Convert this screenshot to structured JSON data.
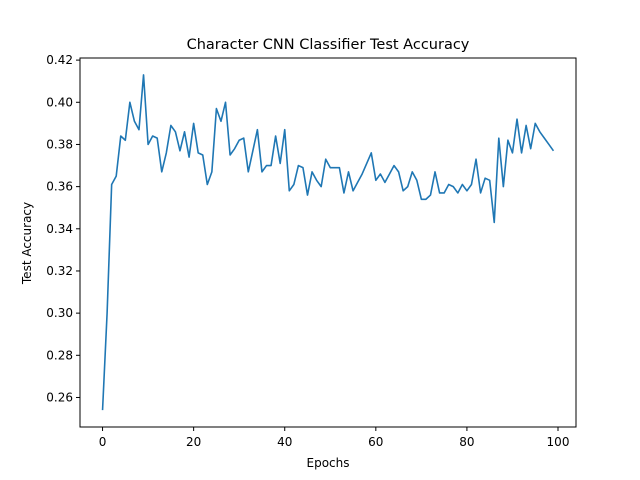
{
  "chart_data": {
    "type": "line",
    "title": "Character CNN Classifier Test Accuracy",
    "xlabel": "Epochs",
    "ylabel": "Test Accuracy",
    "xlim": [
      -4.95,
      103.95
    ],
    "ylim": [
      0.246,
      0.421
    ],
    "xticks": [
      0,
      20,
      40,
      60,
      80,
      100
    ],
    "yticks": [
      0.26,
      0.28,
      0.3,
      0.32,
      0.34,
      0.36,
      0.38,
      0.4,
      0.42
    ],
    "grid": false,
    "line_color": "#1f77b4",
    "series": [
      {
        "x": [
          0,
          1,
          2,
          3,
          4,
          5,
          6,
          7,
          8,
          9,
          10,
          11,
          12,
          13,
          14,
          15,
          16,
          17,
          18,
          19,
          20,
          21,
          22,
          23,
          24,
          25,
          26,
          27,
          28,
          29,
          30,
          31,
          32,
          33,
          34,
          35,
          36,
          37,
          38,
          39,
          40,
          41,
          42,
          43,
          44,
          45,
          46,
          47,
          48,
          49,
          50,
          51,
          52,
          53,
          54,
          55,
          56,
          57,
          58,
          59,
          60,
          61,
          62,
          63,
          64,
          65,
          66,
          67,
          68,
          69,
          70,
          71,
          72,
          73,
          74,
          75,
          76,
          77,
          78,
          79,
          80,
          81,
          82,
          83,
          84,
          85,
          86,
          87,
          88,
          89,
          90,
          91,
          92,
          93,
          94,
          95,
          96,
          97,
          98,
          99
        ],
        "values": [
          0.254,
          0.3,
          0.361,
          0.365,
          0.384,
          0.382,
          0.4,
          0.391,
          0.387,
          0.413,
          0.38,
          0.384,
          0.383,
          0.367,
          0.376,
          0.389,
          0.386,
          0.377,
          0.386,
          0.374,
          0.39,
          0.376,
          0.375,
          0.361,
          0.367,
          0.397,
          0.391,
          0.4,
          0.375,
          0.378,
          0.382,
          0.383,
          0.367,
          0.377,
          0.387,
          0.367,
          0.37,
          0.37,
          0.384,
          0.371,
          0.387,
          0.358,
          0.361,
          0.37,
          0.369,
          0.356,
          0.367,
          0.363,
          0.36,
          0.373,
          0.369,
          0.369,
          0.369,
          0.357,
          0.367,
          0.358,
          0.362,
          0.366,
          0.371,
          0.376,
          0.363,
          0.366,
          0.362,
          0.366,
          0.37,
          0.367,
          0.358,
          0.36,
          0.367,
          0.363,
          0.354,
          0.354,
          0.356,
          0.367,
          0.357,
          0.357,
          0.361,
          0.36,
          0.357,
          0.361,
          0.358,
          0.361,
          0.373,
          0.357,
          0.364,
          0.363,
          0.343,
          0.383,
          0.36,
          0.382,
          0.376,
          0.392,
          0.376,
          0.389,
          0.378,
          0.39,
          0.386,
          0.383,
          0.38,
          0.377
        ]
      }
    ]
  }
}
